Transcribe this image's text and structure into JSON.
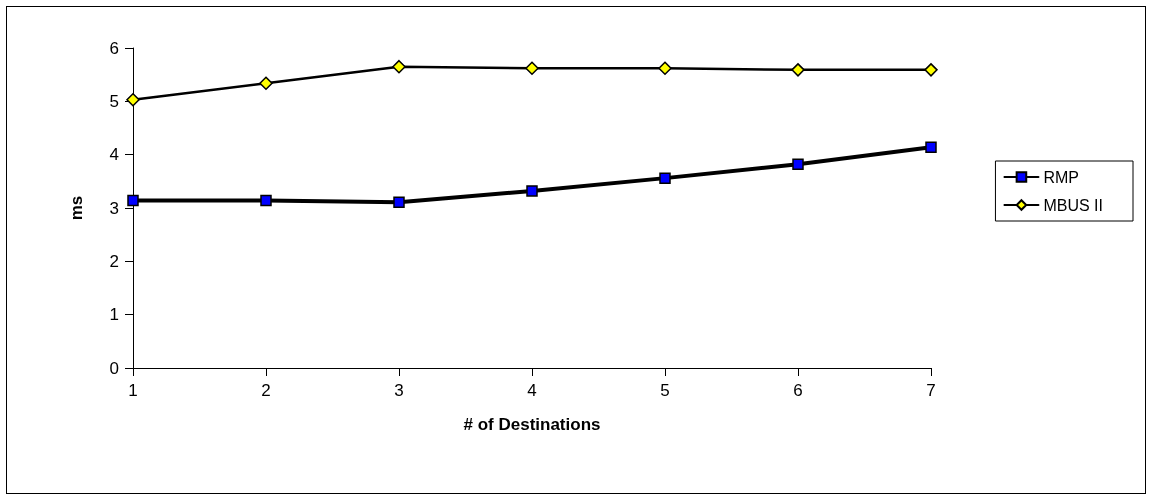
{
  "chart_data": {
    "type": "line",
    "xlabel": "# of Destinations",
    "ylabel": "ms",
    "categories": [
      "1",
      "2",
      "3",
      "4",
      "5",
      "6",
      "7"
    ],
    "series": [
      {
        "name": "RMP",
        "color": "#0000ff",
        "marker": "square",
        "values": [
          3.14,
          3.14,
          3.11,
          3.32,
          3.56,
          3.82,
          4.14
        ]
      },
      {
        "name": "MBUS II",
        "color": "#ffff00",
        "marker": "diamond",
        "values": [
          5.03,
          5.34,
          5.65,
          5.62,
          5.62,
          5.59,
          5.59
        ]
      }
    ],
    "ylim": [
      0,
      6
    ],
    "yticks": [
      0,
      1,
      2,
      3,
      4,
      5,
      6
    ],
    "grid": false,
    "legend": "right",
    "line_style": "solid"
  }
}
